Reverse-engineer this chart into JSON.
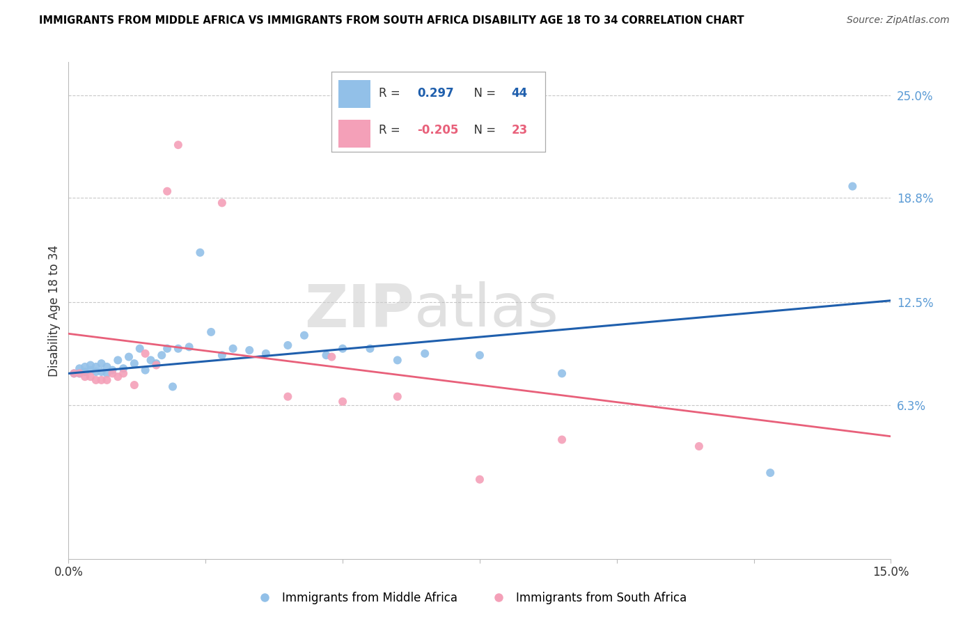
{
  "title": "IMMIGRANTS FROM MIDDLE AFRICA VS IMMIGRANTS FROM SOUTH AFRICA DISABILITY AGE 18 TO 34 CORRELATION CHART",
  "source": "Source: ZipAtlas.com",
  "ylabel": "Disability Age 18 to 34",
  "ytick_labels": [
    "25.0%",
    "18.8%",
    "12.5%",
    "6.3%"
  ],
  "ytick_values": [
    0.25,
    0.188,
    0.125,
    0.063
  ],
  "xmin": 0.0,
  "xmax": 0.15,
  "ymin": -0.03,
  "ymax": 0.27,
  "blue_color": "#92C0E8",
  "pink_color": "#F4A0B8",
  "line_blue": "#1F5FAD",
  "line_pink": "#E8607A",
  "watermark_zip": "ZIP",
  "watermark_atlas": "atlas",
  "legend_label1": "Immigrants from Middle Africa",
  "legend_label2": "Immigrants from South Africa",
  "blue_scatter_x": [
    0.001,
    0.002,
    0.002,
    0.003,
    0.003,
    0.004,
    0.004,
    0.005,
    0.005,
    0.006,
    0.006,
    0.007,
    0.007,
    0.008,
    0.009,
    0.01,
    0.011,
    0.012,
    0.013,
    0.014,
    0.015,
    0.016,
    0.017,
    0.018,
    0.019,
    0.02,
    0.022,
    0.024,
    0.026,
    0.028,
    0.03,
    0.033,
    0.036,
    0.04,
    0.043,
    0.047,
    0.05,
    0.055,
    0.06,
    0.065,
    0.075,
    0.09,
    0.128,
    0.143
  ],
  "blue_scatter_y": [
    0.082,
    0.082,
    0.085,
    0.083,
    0.086,
    0.084,
    0.087,
    0.083,
    0.086,
    0.083,
    0.088,
    0.082,
    0.086,
    0.084,
    0.09,
    0.085,
    0.092,
    0.088,
    0.097,
    0.084,
    0.09,
    0.088,
    0.093,
    0.097,
    0.074,
    0.097,
    0.098,
    0.155,
    0.107,
    0.093,
    0.097,
    0.096,
    0.094,
    0.099,
    0.105,
    0.093,
    0.097,
    0.097,
    0.09,
    0.094,
    0.093,
    0.082,
    0.022,
    0.195
  ],
  "pink_scatter_x": [
    0.001,
    0.002,
    0.003,
    0.004,
    0.005,
    0.006,
    0.007,
    0.008,
    0.009,
    0.01,
    0.012,
    0.014,
    0.016,
    0.018,
    0.02,
    0.028,
    0.04,
    0.048,
    0.05,
    0.06,
    0.075,
    0.09,
    0.115
  ],
  "pink_scatter_y": [
    0.082,
    0.082,
    0.08,
    0.08,
    0.078,
    0.078,
    0.078,
    0.082,
    0.08,
    0.082,
    0.075,
    0.094,
    0.087,
    0.192,
    0.22,
    0.185,
    0.068,
    0.092,
    0.065,
    0.068,
    0.018,
    0.042,
    0.038
  ],
  "blue_line_x": [
    0.0,
    0.15
  ],
  "blue_line_y": [
    0.082,
    0.126
  ],
  "pink_line_x": [
    0.0,
    0.15
  ],
  "pink_line_y": [
    0.106,
    0.044
  ]
}
